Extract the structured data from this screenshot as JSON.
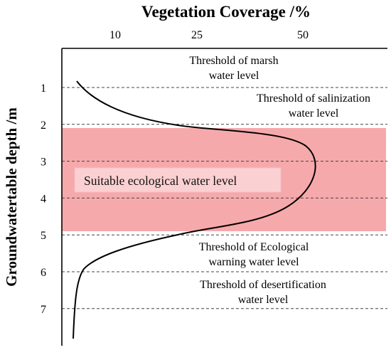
{
  "title": "Vegetation Coverage /%",
  "ylabel": "Groundwatertable depth /m",
  "x_ticks": [
    "10",
    "25",
    "50"
  ],
  "y_ticks": [
    "1",
    "2",
    "3",
    "4",
    "5",
    "6",
    "7"
  ],
  "suitable_zone": {
    "label": "Suitable ecological water level",
    "from_depth": 2.1,
    "to_depth": 4.9,
    "color": "#f6a9ab"
  },
  "thresholds": [
    {
      "depth": 1,
      "lines": [
        "Threshold of marsh",
        "water level"
      ]
    },
    {
      "depth": 2,
      "lines": [
        "Threshold of salinization",
        "water level"
      ]
    },
    {
      "depth": 5,
      "lines": [
        "Threshold of Ecological",
        "warning water level"
      ]
    },
    {
      "depth": 6,
      "lines": [
        "Threshold of desertification",
        "water level"
      ]
    }
  ],
  "colors": {
    "curve": "#000000",
    "axis": "#000000",
    "dashed": "#444444"
  }
}
